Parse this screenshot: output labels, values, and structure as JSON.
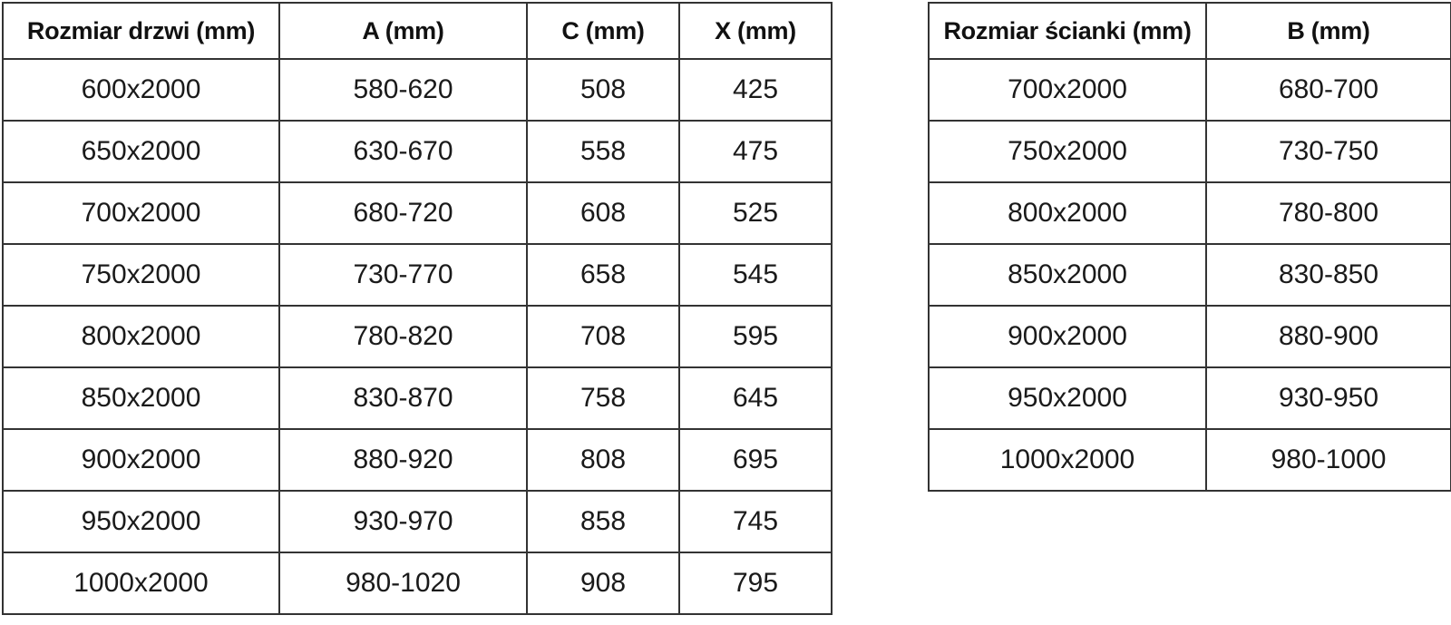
{
  "colors": {
    "background": "#ffffff",
    "border": "#333333",
    "text": "#1a1a1a"
  },
  "chart_data": [
    {
      "type": "table",
      "name": "door-sizes",
      "title": "Rozmiar drzwi (mm)",
      "columns": [
        "Rozmiar drzwi (mm)",
        "A (mm)",
        "C (mm)",
        "X (mm)"
      ],
      "rows": [
        [
          "600x2000",
          "580-620",
          "508",
          "425"
        ],
        [
          "650x2000",
          "630-670",
          "558",
          "475"
        ],
        [
          "700x2000",
          "680-720",
          "608",
          "525"
        ],
        [
          "750x2000",
          "730-770",
          "658",
          "545"
        ],
        [
          "800x2000",
          "780-820",
          "708",
          "595"
        ],
        [
          "850x2000",
          "830-870",
          "758",
          "645"
        ],
        [
          "900x2000",
          "880-920",
          "808",
          "695"
        ],
        [
          "950x2000",
          "930-970",
          "858",
          "745"
        ],
        [
          "1000x2000",
          "980-1020",
          "908",
          "795"
        ]
      ]
    },
    {
      "type": "table",
      "name": "wall-sizes",
      "title": "Rozmiar ścianki (mm)",
      "columns": [
        "Rozmiar ścianki (mm)",
        "B (mm)"
      ],
      "rows": [
        [
          "700x2000",
          "680-700"
        ],
        [
          "750x2000",
          "730-750"
        ],
        [
          "800x2000",
          "780-800"
        ],
        [
          "850x2000",
          "830-850"
        ],
        [
          "900x2000",
          "880-900"
        ],
        [
          "950x2000",
          "930-950"
        ],
        [
          "1000x2000",
          "980-1000"
        ]
      ]
    }
  ]
}
